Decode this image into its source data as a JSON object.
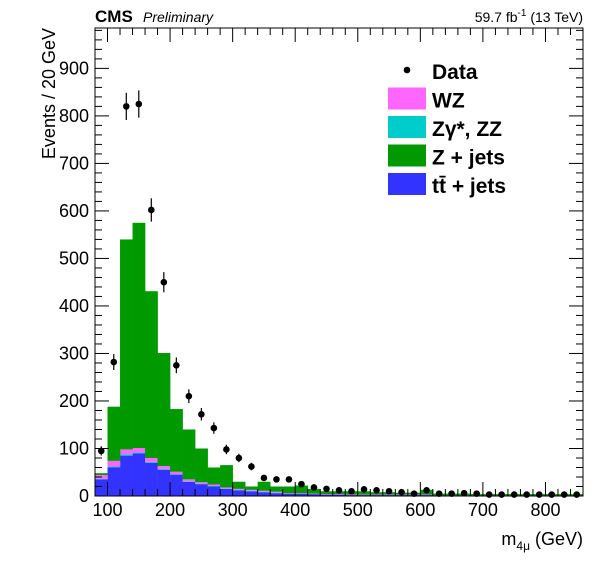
{
  "header": {
    "cms": "CMS",
    "preliminary": "Preliminary",
    "lumi_value": "59.7 fb",
    "lumi_exp": "-1",
    "lumi_energy": " (13 TeV)"
  },
  "chart_data": {
    "type": "bar",
    "stacked": true,
    "ylabel": "Events / 20 GeV",
    "xlabel_main": "m",
    "xlabel_sub": "4μ",
    "xlabel_unit": " (GeV)",
    "xlim": [
      80,
      860
    ],
    "ylim": [
      0,
      985
    ],
    "bin_width": 20,
    "x_ticks": [
      100,
      200,
      300,
      400,
      500,
      600,
      700,
      800
    ],
    "x_tick_labels": [
      "100",
      "200",
      "300",
      "400",
      "500",
      "600",
      "700",
      "800"
    ],
    "y_ticks": [
      0,
      100,
      200,
      300,
      400,
      500,
      600,
      700,
      800,
      900
    ],
    "y_tick_labels": [
      "0",
      "100",
      "200",
      "300",
      "400",
      "500",
      "600",
      "700",
      "800",
      "900"
    ],
    "bins_lo": [
      80,
      100,
      120,
      140,
      160,
      180,
      200,
      220,
      240,
      260,
      280,
      300,
      320,
      340,
      360,
      380,
      400,
      420,
      440,
      460,
      480,
      500,
      520,
      540,
      560,
      580,
      600,
      620,
      640,
      660,
      680,
      700,
      720,
      740,
      760,
      780,
      800,
      820,
      840
    ],
    "series": [
      {
        "name": "tt̄ + jets",
        "color": "#3333ff",
        "values": [
          35,
          60,
          85,
          90,
          70,
          55,
          45,
          30,
          25,
          20,
          15,
          12,
          10,
          8,
          6,
          5,
          5,
          4,
          3,
          3,
          2,
          2,
          2,
          2,
          2,
          2,
          2,
          1,
          1,
          1,
          1,
          1,
          1,
          1,
          1,
          1,
          1,
          1,
          1
        ]
      },
      {
        "name": "Zγ*, ZZ",
        "color": "#00cccc",
        "values": [
          1,
          2,
          3,
          2,
          2,
          2,
          1,
          1,
          1,
          1,
          1,
          1,
          1,
          1,
          1,
          0,
          0,
          0,
          0,
          0,
          0,
          0,
          0,
          0,
          0,
          0,
          0,
          0,
          0,
          0,
          0,
          0,
          0,
          0,
          0,
          0,
          0,
          0,
          0
        ]
      },
      {
        "name": "WZ",
        "color": "#ff66ff",
        "values": [
          8,
          12,
          10,
          9,
          8,
          6,
          5,
          4,
          3,
          3,
          2,
          2,
          2,
          2,
          2,
          1,
          1,
          1,
          1,
          1,
          1,
          1,
          1,
          1,
          1,
          1,
          1,
          0,
          0,
          0,
          0,
          0,
          0,
          0,
          0,
          0,
          0,
          0,
          0
        ]
      },
      {
        "name": "Z + jets",
        "color": "#009900",
        "values": [
          4,
          114,
          442,
          474,
          351,
          238,
          132,
          105,
          71,
          36,
          47,
          15,
          7,
          19,
          11,
          14,
          16,
          10,
          6,
          6,
          7,
          7,
          5,
          5,
          4,
          4,
          10,
          4,
          4,
          4,
          3,
          3,
          3,
          3,
          3,
          3,
          3,
          3,
          3
        ]
      }
    ],
    "data_points": {
      "name": "Data",
      "x": [
        90,
        110,
        130,
        150,
        170,
        190,
        210,
        230,
        250,
        270,
        290,
        310,
        330,
        350,
        370,
        390,
        410,
        430,
        450,
        470,
        490,
        510,
        530,
        550,
        570,
        590,
        610,
        630,
        650,
        670,
        690,
        710,
        730,
        750,
        770,
        790,
        810,
        830,
        850
      ],
      "y": [
        95,
        282,
        820,
        825,
        602,
        450,
        275,
        210,
        172,
        143,
        98,
        80,
        62,
        38,
        35,
        35,
        25,
        18,
        15,
        12,
        10,
        14,
        12,
        10,
        8,
        5,
        12,
        5,
        5,
        6,
        5,
        3,
        3,
        3,
        3,
        3,
        3,
        3,
        3
      ]
    },
    "legend": {
      "placement": "top-right",
      "entries": [
        {
          "label": "Data",
          "kind": "marker",
          "color": "#000000"
        },
        {
          "label": "WZ",
          "kind": "box",
          "color": "#ff66ff"
        },
        {
          "label": "Zγ*, ZZ",
          "kind": "box",
          "color": "#00cccc"
        },
        {
          "label": "Z + jets",
          "kind": "box",
          "color": "#009900"
        },
        {
          "label": "tt̄ + jets",
          "kind": "box",
          "color": "#3333ff"
        }
      ]
    },
    "grid": false
  }
}
